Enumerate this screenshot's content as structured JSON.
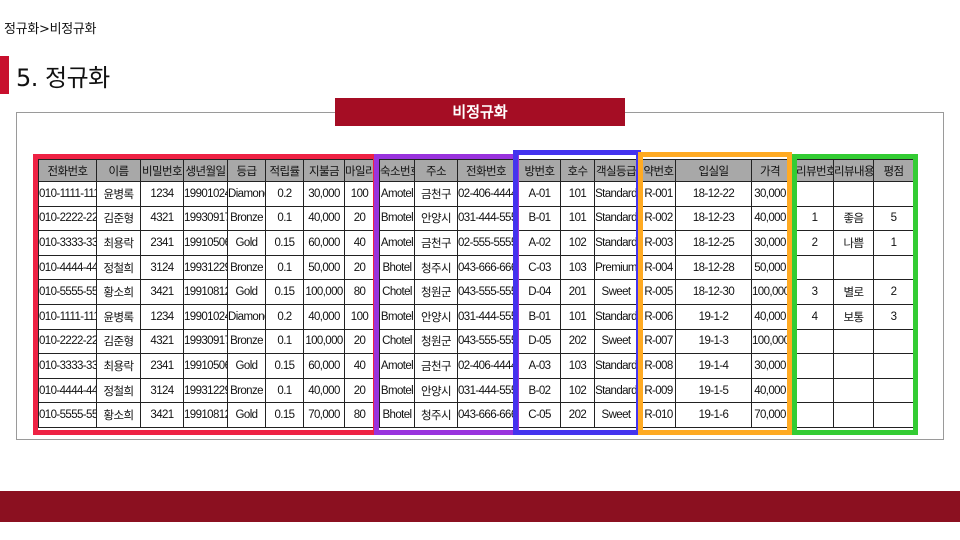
{
  "breadcrumb": "정규화>비정규화",
  "page_title": "5. 정규화",
  "banner_title": "비정규화",
  "colors": {
    "accent": "#c8102e",
    "banner": "#a50d24",
    "footer": "#8b1020",
    "box_red": "#ee2244",
    "box_purple": "#9933dd",
    "box_blue": "#4433ee",
    "box_orange": "#ffaa22",
    "box_green": "#33cc33"
  },
  "tables": {
    "member": {
      "headers": [
        "전화번호",
        "이름",
        "비밀번호",
        "생년월일",
        "등급",
        "적립률",
        "지불금",
        "마일리지"
      ],
      "rows": [
        [
          "010-1111-1111",
          "윤병록",
          "1234",
          "19901024",
          "Diamond",
          "0.2",
          "30,000",
          "100"
        ],
        [
          "010-2222-2222",
          "김준형",
          "4321",
          "19930917",
          "Bronze",
          "0.1",
          "40,000",
          "20"
        ],
        [
          "010-3333-3333",
          "최용락",
          "2341",
          "19910506",
          "Gold",
          "0.15",
          "60,000",
          "40"
        ],
        [
          "010-4444-4444",
          "정철희",
          "3124",
          "19931229",
          "Bronze",
          "0.1",
          "50,000",
          "20"
        ],
        [
          "010-5555-5555",
          "황소희",
          "3421",
          "19910812",
          "Gold",
          "0.15",
          "100,000",
          "80"
        ],
        [
          "010-1111-1111",
          "윤병록",
          "1234",
          "19901024",
          "Diamond",
          "0.2",
          "40,000",
          "100"
        ],
        [
          "010-2222-2222",
          "김준형",
          "4321",
          "19930917",
          "Bronze",
          "0.1",
          "100,000",
          "20"
        ],
        [
          "010-3333-3333",
          "최용락",
          "2341",
          "19910506",
          "Gold",
          "0.15",
          "60,000",
          "40"
        ],
        [
          "010-4444-4444",
          "정철희",
          "3124",
          "19931229",
          "Bronze",
          "0.1",
          "40,000",
          "20"
        ],
        [
          "010-5555-5555",
          "황소희",
          "3421",
          "19910812",
          "Gold",
          "0.15",
          "70,000",
          "80"
        ]
      ]
    },
    "lodging": {
      "headers": [
        "숙소번호",
        "주소",
        "전화번호"
      ],
      "rows": [
        [
          "Amotel",
          "금천구",
          "02-406-4444"
        ],
        [
          "Bmotel",
          "안양시",
          "031-444-5555"
        ],
        [
          "Amotel",
          "금천구",
          "02-555-5555"
        ],
        [
          "Bhotel",
          "청주시",
          "043-666-6666"
        ],
        [
          "Chotel",
          "청원군",
          "043-555-5555"
        ],
        [
          "Bmotel",
          "안양시",
          "031-444-5555"
        ],
        [
          "Chotel",
          "청원군",
          "043-555-5555"
        ],
        [
          "Amotel",
          "금천구",
          "02-406-4444"
        ],
        [
          "Bmotel",
          "안양시",
          "031-444-5555"
        ],
        [
          "Bhotel",
          "청주시",
          "043-666-6666"
        ]
      ]
    },
    "room": {
      "headers": [
        "방번호",
        "호수",
        "객실등급"
      ],
      "rows": [
        [
          "A-01",
          "101",
          "Standard"
        ],
        [
          "B-01",
          "101",
          "Standard"
        ],
        [
          "A-02",
          "102",
          "Standard"
        ],
        [
          "C-03",
          "103",
          "Premium"
        ],
        [
          "D-04",
          "201",
          "Sweet"
        ],
        [
          "B-01",
          "101",
          "Standard"
        ],
        [
          "D-05",
          "202",
          "Sweet"
        ],
        [
          "A-03",
          "103",
          "Standard"
        ],
        [
          "B-02",
          "102",
          "Standard"
        ],
        [
          "C-05",
          "202",
          "Sweet"
        ]
      ]
    },
    "reservation": {
      "headers": [
        "약번호",
        "입실일",
        "가격"
      ],
      "rows": [
        [
          "R-001",
          "18-12-22",
          "30,000"
        ],
        [
          "R-002",
          "18-12-23",
          "40,000"
        ],
        [
          "R-003",
          "18-12-25",
          "30,000"
        ],
        [
          "R-004",
          "18-12-28",
          "50,000"
        ],
        [
          "R-005",
          "18-12-30",
          "100,000"
        ],
        [
          "R-006",
          "19-1-2",
          "40,000"
        ],
        [
          "R-007",
          "19-1-3",
          "100,000"
        ],
        [
          "R-008",
          "19-1-4",
          "30,000"
        ],
        [
          "R-009",
          "19-1-5",
          "40,000"
        ],
        [
          "R-010",
          "19-1-6",
          "70,000"
        ]
      ]
    },
    "review": {
      "headers": [
        "리뷰번호",
        "리뷰내용",
        "평점"
      ],
      "rows": [
        [
          "",
          "",
          ""
        ],
        [
          "1",
          "좋음",
          "5"
        ],
        [
          "2",
          "나쁨",
          "1"
        ],
        [
          "",
          "",
          ""
        ],
        [
          "3",
          "별로",
          "2"
        ],
        [
          "4",
          "보통",
          "3"
        ],
        [
          "",
          "",
          ""
        ],
        [
          "",
          "",
          ""
        ],
        [
          "",
          "",
          ""
        ],
        [
          "",
          "",
          ""
        ]
      ]
    }
  }
}
